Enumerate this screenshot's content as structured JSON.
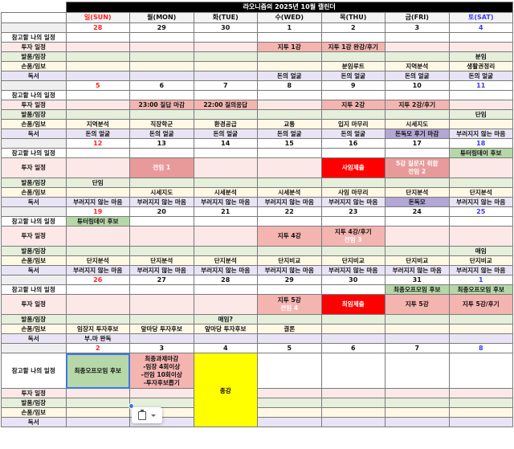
{
  "title": "라오니즘의 2025년 10월 캘린더",
  "days": [
    {
      "label": "일(SUN)",
      "kind": "sun"
    },
    {
      "label": "월(MON)",
      "kind": ""
    },
    {
      "label": "화(TUE)",
      "kind": ""
    },
    {
      "label": "수(WED)",
      "kind": ""
    },
    {
      "label": "목(THU)",
      "kind": ""
    },
    {
      "label": "금(FRI)",
      "kind": ""
    },
    {
      "label": "토(SAT)",
      "kind": "sat"
    }
  ],
  "row_labels": [
    "참고할 나의 일정",
    "투자 일정",
    "발품/임장",
    "손품/임보",
    "독서"
  ],
  "colors": {
    "red-light": "#f4b4b0",
    "red-mid": "#e89a9a",
    "red": "#ff0000",
    "purple": "#b4a7d6",
    "green": "#b6d7a8",
    "yellow": "#ffff00"
  },
  "weeks": [
    {
      "dates": [
        "28",
        "29",
        "30",
        "1",
        "2",
        "3",
        "4"
      ],
      "rows": [
        [
          "",
          "",
          "",
          "",
          "",
          "",
          ""
        ],
        [
          "",
          "",
          "",
          {
            "text": "지투 1강",
            "style": "red-light"
          },
          {
            "text": "지투 1강 완강/후기",
            "style": "red-light"
          },
          "",
          ""
        ],
        [
          "",
          "",
          "",
          "",
          "",
          "",
          "분임"
        ],
        [
          "",
          "",
          "",
          "",
          "분임루트",
          "지역분석",
          "생활권정리"
        ],
        [
          "",
          "",
          "",
          "돈의 얼굴",
          "돈의 얼굴",
          "돈의 얼굴",
          "돈의 얼굴"
        ]
      ]
    },
    {
      "dates": [
        "5",
        "6",
        "7",
        "8",
        "9",
        "10",
        "11"
      ],
      "rows": [
        [
          "",
          "",
          "",
          "",
          "",
          "",
          ""
        ],
        [
          "",
          {
            "text": "23:00 질답 마감",
            "style": "red-light"
          },
          {
            "text": "22:00 질의응답",
            "style": "red-light"
          },
          "",
          {
            "text": "지투 2강",
            "style": "red-light"
          },
          {
            "text": "지투 2강/후기",
            "style": "red-light"
          },
          ""
        ],
        [
          "",
          "",
          "",
          "",
          "",
          "",
          "단임"
        ],
        [
          "지역분석",
          "직장학군",
          "환경공급",
          "교통",
          "입지 마무리",
          "시세지도",
          ""
        ],
        [
          "돈의 얼굴",
          "돈의 얼굴",
          "돈의 얼굴",
          "돈의 얼굴",
          "돈의 얼굴",
          {
            "text": "돈독모 후기 마감",
            "style": "purple"
          },
          "부러지지 않는 마음"
        ]
      ]
    },
    {
      "dates": [
        "12",
        "13",
        "14",
        "15",
        "16",
        "17",
        "18"
      ],
      "tall": true,
      "rows": [
        [
          "",
          "",
          "",
          "",
          "",
          "",
          {
            "text": "튜터링데이 후보",
            "style": "green"
          }
        ],
        [
          "",
          {
            "text": "전임 1",
            "style": "red-mid"
          },
          "",
          "",
          {
            "text": "사임제출",
            "style": "red"
          },
          {
            "text": "5강 질문지 취합",
            "sub": "전임 2",
            "style": "red-mid"
          },
          ""
        ],
        [
          "단임",
          "",
          "",
          "",
          "",
          "",
          ""
        ],
        [
          "",
          "시세지도",
          "시세분석",
          "시세분석",
          "사임 마무리",
          "단지분석",
          "단지분석"
        ],
        [
          "부러지지 않는 마음",
          "부러지지 않는 마음",
          "부러지지 않는 마음",
          "부러지지 않는 마음",
          "부러지지 않는 마음",
          {
            "text": "돈독모",
            "style": "purple"
          },
          "부러지지 않는 마음"
        ]
      ]
    },
    {
      "dates": [
        "19",
        "20",
        "21",
        "22",
        "23",
        "24",
        "25"
      ],
      "tall": true,
      "rows": [
        [
          {
            "text": "튜터링데이 후보",
            "style": "green"
          },
          "",
          "",
          "",
          "",
          "",
          ""
        ],
        [
          "",
          "",
          "",
          {
            "text": "지투 4강",
            "style": "red-light"
          },
          {
            "text": "지투 4강/후기",
            "sub": "전임 3",
            "style": "red-light"
          },
          "",
          ""
        ],
        [
          "",
          "",
          "",
          "",
          "",
          "",
          "매임"
        ],
        [
          "단지분석",
          "단지분석",
          "단지분석",
          "단지비교",
          "단지비교",
          "단지비교",
          "단지비교"
        ],
        [
          "부러지지 않는 마음",
          "부러지지 않는 마음",
          "부러지지 않는 마음",
          "부러지지 않는 마음",
          "부러지지 않는 마음",
          "부러지지 않는 마음",
          "부러지지 않는 마음"
        ]
      ]
    },
    {
      "dates": [
        "26",
        "27",
        "28",
        "29",
        "30",
        "31",
        "1"
      ],
      "tall": true,
      "rows": [
        [
          "",
          "",
          "",
          "",
          "",
          {
            "text": "최종오프모임 후보",
            "style": "green"
          },
          {
            "text": "최종오프모임 후보",
            "style": "green"
          }
        ],
        [
          "",
          "",
          "",
          {
            "text": "지투 5강",
            "sub": "전임 4",
            "style": "red-light"
          },
          {
            "text": "최임제출",
            "style": "red"
          },
          {
            "text": "지투 5강",
            "style": "red-light"
          },
          {
            "text": "지투 5강/후기",
            "style": "red-light"
          }
        ],
        [
          "",
          "",
          "매임?",
          "",
          "",
          "",
          ""
        ],
        [
          "임장지 투자후보",
          "앞마당 투자후보",
          "앞마당 투자후보",
          "결론",
          "",
          "",
          ""
        ],
        [
          "부.마 완독",
          "",
          "",
          "",
          "",
          "",
          ""
        ]
      ]
    },
    {
      "dates": [
        "2",
        "3",
        "4",
        "5",
        "6",
        "7",
        "8"
      ],
      "ref_xtall": true,
      "rows": [
        [
          {
            "text": "최종오프모임 후보",
            "style": "green",
            "selected": true
          },
          {
            "lines": [
              "최종과제마감",
              "-임장 4회이상",
              "-전임 10회이상",
              "-투자후보뽑기"
            ],
            "style": "red-light"
          },
          {
            "text": "종강",
            "style": "yellow",
            "merge_rows": 5
          },
          "",
          "",
          "",
          ""
        ],
        [
          "",
          "",
          null,
          "",
          "",
          "",
          ""
        ],
        [
          "",
          "",
          null,
          "",
          "",
          "",
          ""
        ],
        [
          "",
          "",
          null,
          "",
          "",
          "",
          ""
        ],
        [
          "",
          "",
          null,
          "",
          "",
          "",
          ""
        ]
      ]
    }
  ],
  "paste_popup": {
    "icon": "clipboard-icon",
    "menu": "chevron-down-icon"
  }
}
